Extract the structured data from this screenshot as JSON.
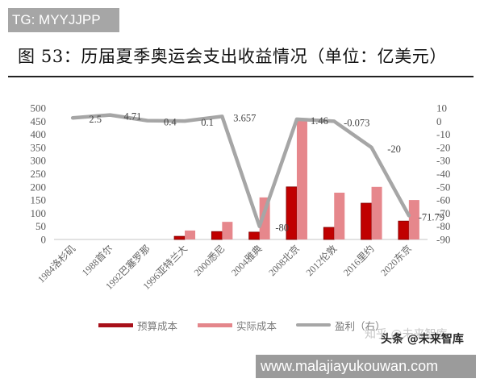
{
  "watermarks": {
    "top": "TG: MYYJJPP",
    "zhihu": "知乎 @未来智库",
    "toutiao": "头条 @未来智库",
    "bottom": "www.malajiayukouwan.com"
  },
  "title": "图 53：历届夏季奥运会支出收益情况（单位：亿美元）",
  "legend": [
    {
      "label": "预算成本",
      "icon": "bar-swatch-icon",
      "color": "#a8101a"
    },
    {
      "label": "实际成本",
      "icon": "bar-swatch-icon",
      "color": "#e4868b"
    },
    {
      "label": "盈利（右）",
      "icon": "line-swatch-icon",
      "color": "#a6a6a6"
    }
  ],
  "colors": {
    "budget_bar": "#c00000",
    "budget_bar_border": "#7f0000",
    "actual_bar": "#e6878c",
    "profit_line": "#a6a6a6",
    "axis_line": "#d9d9d9"
  },
  "chart_data": {
    "type": "bar+line",
    "title": "图 53：历届夏季奥运会支出收益情况（单位：亿美元）",
    "xlabel": "",
    "ylabel_left": "",
    "ylabel_right": "",
    "categories": [
      "1984洛杉矶",
      "1988首尔",
      "1992巴塞罗那",
      "1996亚特兰大",
      "2000悉尼",
      "2004雅典",
      "2008北京",
      "2012伦敦",
      "2016里约",
      "2020东京"
    ],
    "series": [
      {
        "name": "预算成本",
        "type": "bar",
        "axis": "left",
        "values": [
          null,
          null,
          null,
          12,
          30,
          28,
          200,
          46,
          138,
          70
        ]
      },
      {
        "name": "实际成本",
        "type": "bar",
        "axis": "left",
        "values": [
          null,
          null,
          null,
          34,
          67,
          160,
          460,
          178,
          200,
          150
        ]
      },
      {
        "name": "盈利（右）",
        "type": "line",
        "axis": "right",
        "values": [
          2.5,
          4.71,
          0.4,
          0.1,
          3.657,
          -80,
          1.46,
          -0.073,
          -20,
          -71.79
        ],
        "data_labels": [
          "2.5",
          "4.71",
          "0.4",
          "0.1",
          "3.657",
          "-80",
          "1.46",
          "-0.073",
          "-20",
          "-71.79"
        ]
      }
    ],
    "y_left": {
      "ylim": [
        0,
        500
      ],
      "ticks": [
        500,
        450,
        400,
        350,
        300,
        250,
        200,
        150,
        100,
        50,
        0
      ]
    },
    "y_right": {
      "ylim": [
        -90,
        10
      ],
      "ticks": [
        10,
        0,
        -10,
        -20,
        -30,
        -40,
        -50,
        -60,
        -70,
        -80,
        -90
      ]
    },
    "grid": false,
    "legend_position": "bottom"
  }
}
